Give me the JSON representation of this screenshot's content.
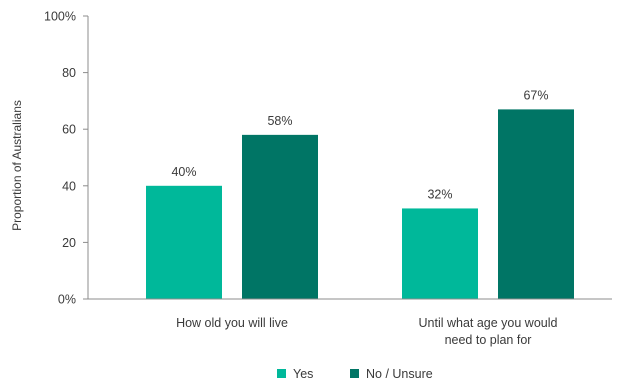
{
  "chart_data": {
    "type": "bar",
    "categories": [
      [
        "How old you will live"
      ],
      [
        "Until what age you would",
        "need to plan for"
      ]
    ],
    "series": [
      {
        "name": "Yes",
        "values": [
          40,
          32
        ],
        "labels": [
          "40%",
          "32%"
        ],
        "color": "#00b89a"
      },
      {
        "name": "No / Unsure",
        "values": [
          58,
          67
        ],
        "labels": [
          "58%",
          "67%"
        ],
        "color": "#007565"
      }
    ],
    "ylabel": "Proportion of Australians",
    "xlabel": "",
    "ylim": [
      0,
      100
    ],
    "yticks": [
      0,
      20,
      40,
      60,
      80,
      100
    ],
    "ytick_labels": [
      "0%",
      "20",
      "40",
      "60",
      "80",
      "100%"
    ],
    "grid": false,
    "legend": "bottom-center"
  }
}
